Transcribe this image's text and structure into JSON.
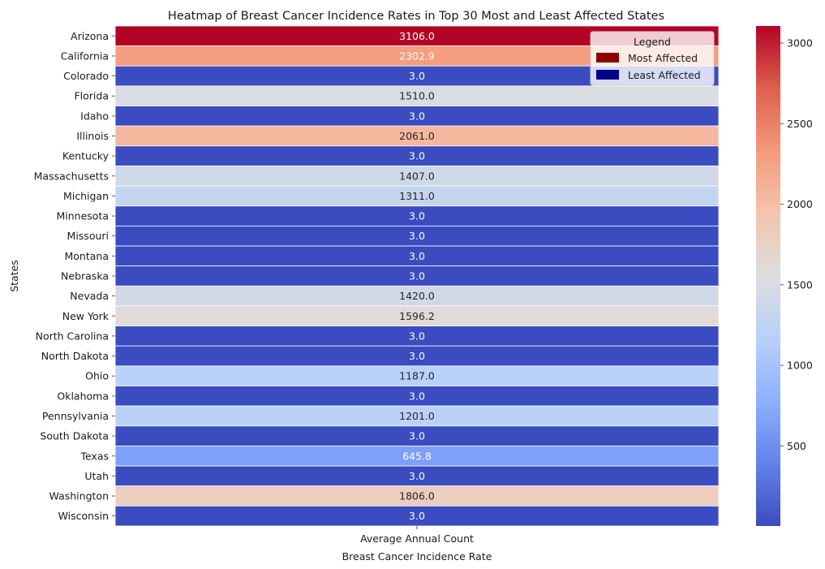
{
  "chart_data": {
    "type": "heatmap",
    "title": "Heatmap of Breast Cancer Incidence Rates in Top 30 Most and Least Affected States",
    "xlabel": "Breast Cancer Incidence Rate",
    "ylabel": "States",
    "columns": [
      "Average Annual Count"
    ],
    "rows": [
      {
        "state": "Arizona",
        "value": 3106.0,
        "label": "3106.0"
      },
      {
        "state": "California",
        "value": 2302.9,
        "label": "2302.9"
      },
      {
        "state": "Colorado",
        "value": 3.0,
        "label": "3.0"
      },
      {
        "state": "Florida",
        "value": 1510.0,
        "label": "1510.0"
      },
      {
        "state": "Idaho",
        "value": 3.0,
        "label": "3.0"
      },
      {
        "state": "Illinois",
        "value": 2061.0,
        "label": "2061.0"
      },
      {
        "state": "Kentucky",
        "value": 3.0,
        "label": "3.0"
      },
      {
        "state": "Massachusetts",
        "value": 1407.0,
        "label": "1407.0"
      },
      {
        "state": "Michigan",
        "value": 1311.0,
        "label": "1311.0"
      },
      {
        "state": "Minnesota",
        "value": 3.0,
        "label": "3.0"
      },
      {
        "state": "Missouri",
        "value": 3.0,
        "label": "3.0"
      },
      {
        "state": "Montana",
        "value": 3.0,
        "label": "3.0"
      },
      {
        "state": "Nebraska",
        "value": 3.0,
        "label": "3.0"
      },
      {
        "state": "Nevada",
        "value": 1420.0,
        "label": "1420.0"
      },
      {
        "state": "New York",
        "value": 1596.2,
        "label": "1596.2"
      },
      {
        "state": "North Carolina",
        "value": 3.0,
        "label": "3.0"
      },
      {
        "state": "North Dakota",
        "value": 3.0,
        "label": "3.0"
      },
      {
        "state": "Ohio",
        "value": 1187.0,
        "label": "1187.0"
      },
      {
        "state": "Oklahoma",
        "value": 3.0,
        "label": "3.0"
      },
      {
        "state": "Pennsylvania",
        "value": 1201.0,
        "label": "1201.0"
      },
      {
        "state": "South Dakota",
        "value": 3.0,
        "label": "3.0"
      },
      {
        "state": "Texas",
        "value": 645.8,
        "label": "645.8"
      },
      {
        "state": "Utah",
        "value": 3.0,
        "label": "3.0"
      },
      {
        "state": "Washington",
        "value": 1806.0,
        "label": "1806.0"
      },
      {
        "state": "Wisconsin",
        "value": 3.0,
        "label": "3.0"
      }
    ],
    "colormap": "coolwarm",
    "vmin": 3.0,
    "vmax": 3106.0,
    "colorbar": {
      "ticks": [
        500,
        1000,
        1500,
        2000,
        2500,
        3000
      ],
      "tick_labels": [
        "500",
        "1000",
        "1500",
        "2000",
        "2500",
        "3000"
      ]
    },
    "legend": {
      "title": "Legend",
      "placement": "top-right",
      "entries": [
        {
          "label": "Most Affected",
          "color": "#8b0000"
        },
        {
          "label": "Least Affected",
          "color": "#00008b"
        }
      ]
    },
    "grid": false
  }
}
